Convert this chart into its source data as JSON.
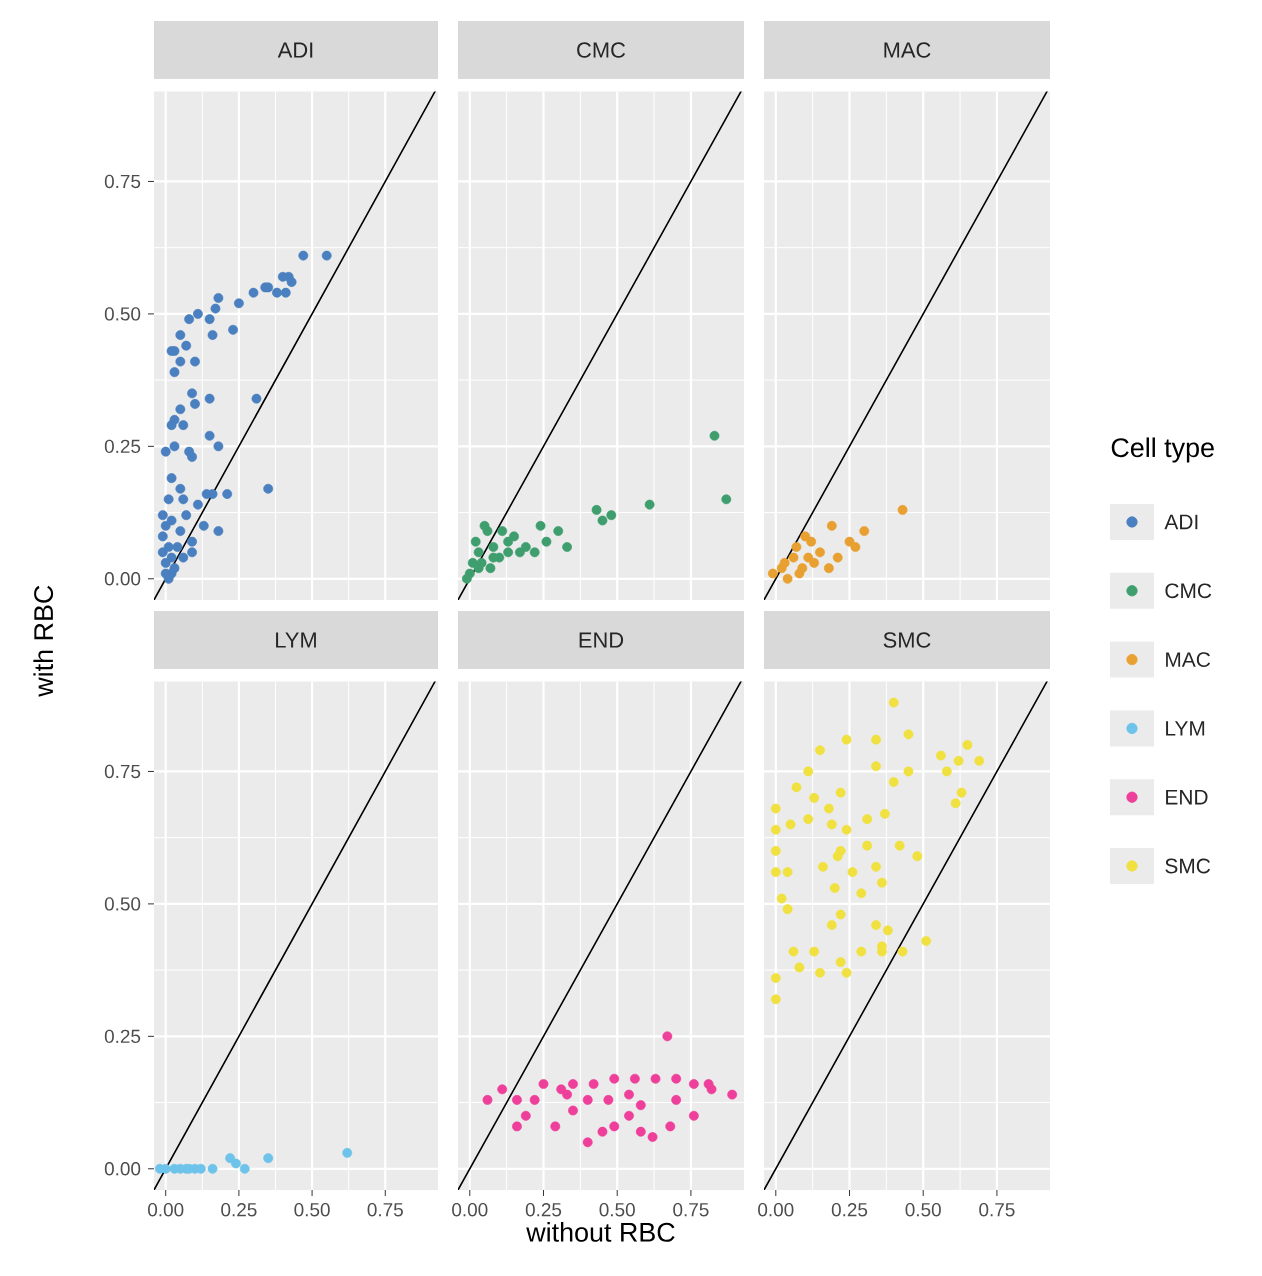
{
  "chart_data": [
    {
      "type": "scatter",
      "title": "ADI",
      "ylabel": "with RBC",
      "legend_title": "Cell type",
      "legend": "right",
      "grid": true,
      "marker": "circle",
      "tick_labels": "y",
      "xlim": [
        -0.04,
        0.93
      ],
      "ylim": [
        -0.04,
        0.92
      ],
      "xticks": [
        {
          "value": 0,
          "label": null
        },
        {
          "value": 0.25,
          "label": null
        },
        {
          "value": 0.5,
          "label": null
        },
        {
          "value": 0.75,
          "label": null
        }
      ],
      "yticks": [
        {
          "value": 0,
          "label": "0.00"
        },
        {
          "value": 0.25,
          "label": "0.25"
        },
        {
          "value": 0.5,
          "label": "0.50"
        },
        {
          "value": 0.75,
          "label": "0.75"
        }
      ],
      "series": [
        {
          "name": "ADI",
          "color": "#4a7fc0",
          "x": [
            0.55,
            0.47,
            0.42,
            0.43,
            0.4,
            0.35,
            0.38,
            0.41,
            0.3,
            0.34,
            0.25,
            0.23,
            0.18,
            0.17,
            0.15,
            0.16,
            0.11,
            0.08,
            0.07,
            0.05,
            0.03,
            0.02,
            0.03,
            0.05,
            0.1,
            0.31,
            0.15,
            0.09,
            0.1,
            0.05,
            0.03,
            0.06,
            0.02,
            0.15,
            0.18,
            0,
            0.03,
            0.08,
            0.09,
            0.35,
            0.21,
            0.16,
            0.14,
            0.02,
            0.05,
            0.01,
            0.06,
            0.11,
            0.18,
            0.02,
            0,
            0.01,
            -0.01,
            0.02,
            0.06,
            0.09,
            0.09,
            0,
            0.02,
            -0.01,
            0.05,
            0.07,
            -0.01,
            0.13,
            0.01,
            0.03,
            0.04,
            0
          ],
          "values": [
            0.61,
            0.61,
            0.57,
            0.56,
            0.57,
            0.55,
            0.54,
            0.54,
            0.54,
            0.55,
            0.52,
            0.47,
            0.53,
            0.51,
            0.49,
            0.46,
            0.5,
            0.49,
            0.44,
            0.46,
            0.43,
            0.43,
            0.39,
            0.41,
            0.41,
            0.34,
            0.34,
            0.35,
            0.33,
            0.32,
            0.3,
            0.29,
            0.29,
            0.27,
            0.25,
            0.24,
            0.25,
            0.24,
            0.23,
            0.17,
            0.16,
            0.16,
            0.16,
            0.19,
            0.17,
            0.15,
            0.15,
            0.14,
            0.09,
            0.11,
            0.1,
            0.06,
            0.05,
            0.04,
            0.04,
            0.05,
            0.07,
            0.01,
            0.01,
            0.08,
            0.09,
            0.12,
            0.12,
            0.1,
            0,
            0.02,
            0.06,
            0.03
          ]
        },
        {
          "type": "line",
          "marker": "none",
          "color": "#000000",
          "x": [
            -0.04,
            0.92
          ],
          "values": [
            -0.04,
            0.92
          ]
        }
      ]
    },
    {
      "type": "scatter",
      "title": "CMC",
      "legend": "right",
      "grid": true,
      "marker": "circle",
      "tick_labels": false,
      "xlim": [
        -0.04,
        0.93
      ],
      "ylim": [
        -0.04,
        0.92
      ],
      "xticks": [
        {
          "value": 0,
          "label": null
        },
        {
          "value": 0.25,
          "label": null
        },
        {
          "value": 0.5,
          "label": null
        },
        {
          "value": 0.75,
          "label": null
        }
      ],
      "yticks": [
        {
          "value": 0,
          "label": null
        },
        {
          "value": 0.25,
          "label": null
        },
        {
          "value": 0.5,
          "label": null
        },
        {
          "value": 0.75,
          "label": null
        }
      ],
      "series": [
        {
          "name": "CMC",
          "color": "#3f9e6e",
          "x": [
            0.83,
            0.87,
            0.61,
            0.48,
            0.45,
            0.43,
            0.33,
            0.3,
            0.24,
            0.26,
            0.19,
            0.13,
            0.08,
            0.03,
            0.01,
            0,
            0.06,
            0.13,
            0.17,
            0.22,
            0.1,
            0.03,
            0.08,
            -0.01,
            0.05,
            0.02,
            0.15,
            0.11,
            0.04,
            0.07
          ],
          "values": [
            0.27,
            0.15,
            0.14,
            0.12,
            0.11,
            0.13,
            0.06,
            0.09,
            0.1,
            0.07,
            0.06,
            0.07,
            0.06,
            0.05,
            0.03,
            0.01,
            0.09,
            0.05,
            0.05,
            0.05,
            0.04,
            0.02,
            0.04,
            0.0,
            0.1,
            0.07,
            0.08,
            0.09,
            0.03,
            0.02
          ]
        },
        {
          "type": "line",
          "marker": "none",
          "color": "#000000",
          "x": [
            -0.04,
            0.92
          ],
          "values": [
            -0.04,
            0.92
          ]
        }
      ]
    },
    {
      "type": "scatter",
      "title": "MAC",
      "legend": "right",
      "grid": true,
      "marker": "circle",
      "tick_labels": false,
      "xlim": [
        -0.04,
        0.93
      ],
      "ylim": [
        -0.04,
        0.92
      ],
      "xticks": [
        {
          "value": 0,
          "label": null
        },
        {
          "value": 0.25,
          "label": null
        },
        {
          "value": 0.5,
          "label": null
        },
        {
          "value": 0.75,
          "label": null
        }
      ],
      "yticks": [
        {
          "value": 0,
          "label": null
        },
        {
          "value": 0.25,
          "label": null
        },
        {
          "value": 0.5,
          "label": null
        },
        {
          "value": 0.75,
          "label": null
        }
      ],
      "series": [
        {
          "name": "MAC",
          "color": "#e8a030",
          "x": [
            0.43,
            0.3,
            0.25,
            0.27,
            0.19,
            0.21,
            0.1,
            0.15,
            0.11,
            0.06,
            0.02,
            -0.01,
            0.13,
            0.18,
            0.08,
            0.04,
            0.07,
            0.12,
            0.03,
            0.09
          ],
          "values": [
            0.13,
            0.09,
            0.07,
            0.06,
            0.1,
            0.04,
            0.08,
            0.05,
            0.04,
            0.04,
            0.02,
            0.01,
            0.03,
            0.02,
            0.01,
            0.0,
            0.06,
            0.07,
            0.03,
            0.02
          ]
        },
        {
          "type": "line",
          "marker": "none",
          "color": "#000000",
          "x": [
            -0.04,
            0.92
          ],
          "values": [
            -0.04,
            0.92
          ]
        }
      ]
    },
    {
      "type": "scatter",
      "title": "LYM",
      "legend": "right",
      "grid": true,
      "marker": "circle",
      "xlim": [
        -0.04,
        0.93
      ],
      "ylim": [
        -0.04,
        0.92
      ],
      "xticks": [
        {
          "value": 0,
          "label": "0.00"
        },
        {
          "value": 0.25,
          "label": "0.25"
        },
        {
          "value": 0.5,
          "label": "0.50"
        },
        {
          "value": 0.75,
          "label": "0.75"
        }
      ],
      "yticks": [
        {
          "value": 0,
          "label": "0.00"
        },
        {
          "value": 0.25,
          "label": "0.25"
        },
        {
          "value": 0.5,
          "label": "0.50"
        },
        {
          "value": 0.75,
          "label": "0.75"
        }
      ],
      "series": [
        {
          "name": "LYM",
          "color": "#6ec3ea",
          "x": [
            0.62,
            0.35,
            0.27,
            0.24,
            0.22,
            0.16,
            0.1,
            0.05,
            0,
            0.07,
            -0.02,
            0.03,
            0.12,
            0.08
          ],
          "values": [
            0.03,
            0.02,
            0.0,
            0.01,
            0.02,
            0.0,
            0.0,
            0.0,
            0.0,
            0.0,
            0.0,
            0.0,
            0.0,
            0.0
          ]
        },
        {
          "type": "line",
          "marker": "none",
          "color": "#000000",
          "x": [
            -0.04,
            0.92
          ],
          "values": [
            -0.04,
            0.92
          ]
        }
      ]
    },
    {
      "type": "scatter",
      "title": "END",
      "xlabel": "without RBC",
      "legend": "right",
      "grid": true,
      "marker": "circle",
      "tick_labels": "x",
      "xlim": [
        -0.04,
        0.93
      ],
      "ylim": [
        -0.04,
        0.92
      ],
      "xticks": [
        {
          "value": 0,
          "label": "0.00"
        },
        {
          "value": 0.25,
          "label": "0.25"
        },
        {
          "value": 0.5,
          "label": "0.50"
        },
        {
          "value": 0.75,
          "label": "0.75"
        }
      ],
      "yticks": [
        {
          "value": 0,
          "label": null
        },
        {
          "value": 0.25,
          "label": null
        },
        {
          "value": 0.5,
          "label": null
        },
        {
          "value": 0.75,
          "label": null
        }
      ],
      "series": [
        {
          "name": "END",
          "color": "#ee3f9a",
          "x": [
            0.67,
            0.06,
            0.11,
            0.16,
            0.19,
            0.16,
            0.22,
            0.25,
            0.29,
            0.35,
            0.4,
            0.45,
            0.49,
            0.54,
            0.58,
            0.62,
            0.68,
            0.76,
            0.82,
            0.89,
            0.81,
            0.76,
            0.7,
            0.63,
            0.56,
            0.49,
            0.42,
            0.35,
            0.31,
            0.47,
            0.58,
            0.7,
            0.54,
            0.4,
            0.33
          ],
          "values": [
            0.25,
            0.13,
            0.15,
            0.13,
            0.1,
            0.08,
            0.13,
            0.16,
            0.08,
            0.11,
            0.05,
            0.07,
            0.08,
            0.1,
            0.07,
            0.06,
            0.08,
            0.1,
            0.15,
            0.14,
            0.16,
            0.16,
            0.17,
            0.17,
            0.17,
            0.17,
            0.16,
            0.16,
            0.15,
            0.13,
            0.12,
            0.13,
            0.14,
            0.13,
            0.14
          ]
        },
        {
          "type": "line",
          "marker": "none",
          "color": "#000000",
          "x": [
            -0.04,
            0.92
          ],
          "values": [
            -0.04,
            0.92
          ]
        }
      ]
    },
    {
      "type": "scatter",
      "title": "SMC",
      "legend": "right",
      "grid": true,
      "marker": "circle",
      "tick_labels": "x",
      "xlim": [
        -0.04,
        0.93
      ],
      "ylim": [
        -0.04,
        0.92
      ],
      "xticks": [
        {
          "value": 0,
          "label": "0.00"
        },
        {
          "value": 0.25,
          "label": "0.25"
        },
        {
          "value": 0.5,
          "label": "0.50"
        },
        {
          "value": 0.75,
          "label": "0.75"
        }
      ],
      "yticks": [
        {
          "value": 0,
          "label": null
        },
        {
          "value": 0.25,
          "label": null
        },
        {
          "value": 0.5,
          "label": null
        },
        {
          "value": 0.75,
          "label": null
        }
      ],
      "series": [
        {
          "name": "SMC",
          "color": "#f0e040",
          "x": [
            0.4,
            0.69,
            0.65,
            0.56,
            0.62,
            0.58,
            0.63,
            0.61,
            0.45,
            0.34,
            0.24,
            0.15,
            0.11,
            0.07,
            0.13,
            0.18,
            0.22,
            0.34,
            0.4,
            0.45,
            0.0,
            0.0,
            0.05,
            0.11,
            0.19,
            0.24,
            0.31,
            0.37,
            0.42,
            0.48,
            0.31,
            0.22,
            0.21,
            0.16,
            0.2,
            0.26,
            0.29,
            0.34,
            0.36,
            0.0,
            0.0,
            0.04,
            0.02,
            0.04,
            0.22,
            0.19,
            0.34,
            0.38,
            0.51,
            0.43,
            0.36,
            0.29,
            0.22,
            0.13,
            0.06,
            0.0,
            0.0,
            0.08,
            0.15,
            0.24,
            0.36
          ],
          "values": [
            0.88,
            0.77,
            0.8,
            0.78,
            0.77,
            0.75,
            0.71,
            0.69,
            0.82,
            0.81,
            0.81,
            0.79,
            0.75,
            0.72,
            0.7,
            0.68,
            0.71,
            0.76,
            0.73,
            0.75,
            0.68,
            0.64,
            0.65,
            0.66,
            0.65,
            0.64,
            0.66,
            0.67,
            0.61,
            0.59,
            0.61,
            0.6,
            0.59,
            0.57,
            0.53,
            0.56,
            0.52,
            0.57,
            0.54,
            0.6,
            0.56,
            0.56,
            0.51,
            0.49,
            0.48,
            0.46,
            0.46,
            0.45,
            0.43,
            0.41,
            0.41,
            0.41,
            0.39,
            0.41,
            0.41,
            0.36,
            0.32,
            0.38,
            0.37,
            0.37,
            0.42
          ]
        },
        {
          "type": "line",
          "marker": "none",
          "color": "#000000",
          "x": [
            -0.04,
            0.92
          ],
          "values": [
            -0.04,
            0.92
          ]
        }
      ]
    }
  ]
}
